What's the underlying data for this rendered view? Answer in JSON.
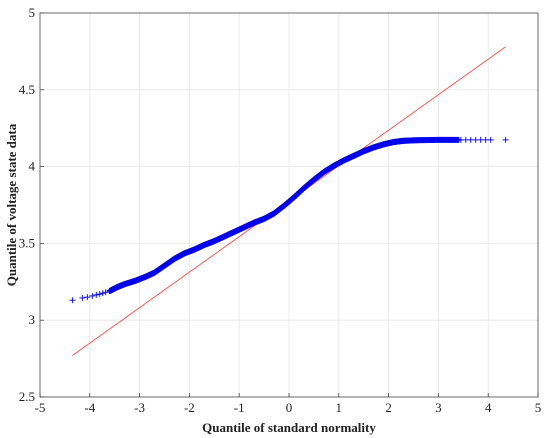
{
  "chart_data": {
    "type": "scatter",
    "title": "",
    "xlabel": "Quantile of standard normality",
    "ylabel": "Quantile of voltage state data",
    "xlim": [
      -5,
      5
    ],
    "ylim": [
      2.5,
      5
    ],
    "x_ticks": [
      -5,
      -4,
      -3,
      -2,
      -1,
      0,
      1,
      2,
      3,
      4,
      5
    ],
    "y_ticks": [
      2.5,
      3,
      3.5,
      4,
      4.5,
      5
    ],
    "y_tick_labels": [
      "2.5",
      "3",
      "3.5",
      "4",
      "4.5",
      "5"
    ],
    "grid": true,
    "legend": "none",
    "series": [
      {
        "marker": "+",
        "color": "#0000ee",
        "curve_points": [
          [
            -4.35,
            3.13
          ],
          [
            -4.1,
            3.145
          ],
          [
            -3.9,
            3.16
          ],
          [
            -3.75,
            3.175
          ],
          [
            -3.6,
            3.19
          ],
          [
            -3.45,
            3.215
          ],
          [
            -3.3,
            3.235
          ],
          [
            -3.1,
            3.255
          ],
          [
            -2.9,
            3.28
          ],
          [
            -2.7,
            3.31
          ],
          [
            -2.5,
            3.355
          ],
          [
            -2.3,
            3.4
          ],
          [
            -2.1,
            3.435
          ],
          [
            -1.9,
            3.46
          ],
          [
            -1.7,
            3.49
          ],
          [
            -1.5,
            3.515
          ],
          [
            -1.3,
            3.545
          ],
          [
            -1.1,
            3.575
          ],
          [
            -0.9,
            3.605
          ],
          [
            -0.7,
            3.635
          ],
          [
            -0.5,
            3.66
          ],
          [
            -0.3,
            3.695
          ],
          [
            -0.1,
            3.745
          ],
          [
            0.1,
            3.8
          ],
          [
            0.3,
            3.86
          ],
          [
            0.5,
            3.915
          ],
          [
            0.7,
            3.965
          ],
          [
            0.9,
            4.005
          ],
          [
            1.1,
            4.04
          ],
          [
            1.3,
            4.07
          ],
          [
            1.5,
            4.1
          ],
          [
            1.7,
            4.125
          ],
          [
            1.9,
            4.145
          ],
          [
            2.1,
            4.16
          ],
          [
            2.3,
            4.168
          ],
          [
            2.6,
            4.172
          ],
          [
            3.0,
            4.174
          ],
          [
            3.4,
            4.174
          ],
          [
            3.7,
            4.174
          ],
          [
            4.0,
            4.174
          ],
          [
            4.35,
            4.174
          ]
        ],
        "sparse_points": [
          [
            -4.35,
            3.13
          ],
          [
            -4.15,
            3.145
          ],
          [
            -4.05,
            3.15
          ],
          [
            -3.95,
            3.158
          ],
          [
            -3.87,
            3.165
          ],
          [
            -3.8,
            3.17
          ],
          [
            -3.74,
            3.176
          ],
          [
            -3.68,
            3.182
          ],
          [
            3.45,
            4.174
          ],
          [
            3.55,
            4.174
          ],
          [
            3.65,
            4.174
          ],
          [
            3.75,
            4.174
          ],
          [
            3.85,
            4.174
          ],
          [
            3.95,
            4.174
          ],
          [
            4.05,
            4.174
          ],
          [
            4.35,
            4.174
          ]
        ]
      },
      {
        "type": "line",
        "color": "#ff4d4d",
        "x": [
          -4.35,
          4.35
        ],
        "y": [
          2.77,
          4.78
        ]
      }
    ]
  }
}
